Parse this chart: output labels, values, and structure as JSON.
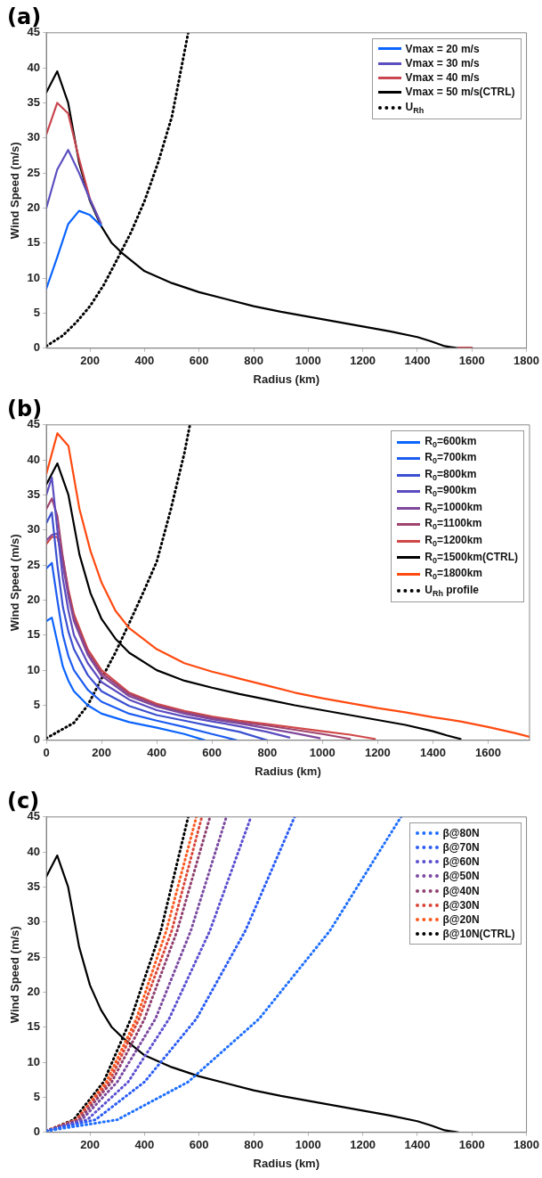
{
  "chart_data": [
    {
      "type": "line",
      "title": "(a)",
      "xlabel": "Radius (km)",
      "ylabel": "Wind Speed (m/s)",
      "xlim": [
        40,
        1800
      ],
      "xticks": [
        200,
        400,
        600,
        800,
        1000,
        1200,
        1400,
        1600,
        1800
      ],
      "ylim": [
        0,
        45
      ],
      "yticks": [
        0,
        5,
        10,
        15,
        20,
        25,
        30,
        35,
        40,
        45
      ],
      "legend": "top right",
      "marker": "none",
      "x": [
        40,
        80,
        120,
        160,
        200,
        240,
        280,
        320,
        400,
        500,
        600,
        700,
        800,
        900,
        1000,
        1100,
        1200,
        1300,
        1400,
        1450,
        1500,
        1550,
        1600
      ],
      "series": [
        {
          "name": "Vmax = 20 m/s",
          "color": "#0a64ff",
          "values": [
            8.5,
            13,
            17.7,
            19.6,
            19,
            17.5,
            null,
            null,
            null,
            null,
            null,
            null,
            null,
            null,
            null,
            null,
            null,
            null,
            null,
            null,
            null,
            null,
            null
          ]
        },
        {
          "name": "Vmax = 30 m/s",
          "color": "#5b4fc0",
          "values": [
            20,
            25.5,
            28.3,
            25,
            21.2,
            17.8,
            null,
            null,
            null,
            null,
            null,
            null,
            null,
            null,
            null,
            null,
            null,
            null,
            null,
            null,
            null,
            null,
            null
          ]
        },
        {
          "name": "Vmax = 40 m/s",
          "color": "#c8464f",
          "values": [
            30.5,
            35,
            33.5,
            27,
            21.3,
            17.8,
            null,
            null,
            null,
            null,
            null,
            null,
            null,
            null,
            null,
            null,
            null,
            null,
            null,
            null,
            null,
            0.1,
            0.1
          ]
        },
        {
          "name": "Vmax = 50 m/s(CTRL)",
          "color": "#000000",
          "x": [
            40,
            80,
            120,
            160,
            200,
            240,
            280,
            320,
            400,
            500,
            600,
            700,
            800,
            900,
            1000,
            1100,
            1200,
            1300,
            1400,
            1450,
            1500,
            1550
          ],
          "values": [
            36.5,
            39.5,
            35,
            26.5,
            21,
            17.5,
            15,
            13.5,
            11,
            9.3,
            8,
            7,
            6,
            5.2,
            4.5,
            3.8,
            3.1,
            2.4,
            1.6,
            1,
            0.3,
            0
          ]
        },
        {
          "name": "U$_{Rh}$",
          "color": "#000000",
          "line_style": "dotted",
          "x": [
            40,
            100,
            150,
            200,
            250,
            300,
            350,
            400,
            450,
            500,
            560
          ],
          "values": [
            0.3,
            1.8,
            3.7,
            6,
            9,
            12.7,
            16.5,
            21,
            26.5,
            33,
            45
          ]
        }
      ]
    },
    {
      "type": "line",
      "title": "(b)",
      "xlabel": "Radius (km)",
      "ylabel": "Wind Speed (m/s)",
      "xlim": [
        0,
        1750
      ],
      "xticks": [
        0,
        200,
        400,
        600,
        800,
        1000,
        1200,
        1400,
        1600
      ],
      "ylim": [
        0,
        45
      ],
      "yticks": [
        0,
        5,
        10,
        15,
        20,
        25,
        30,
        35,
        40,
        45
      ],
      "legend": "top right",
      "marker": "none",
      "series": [
        {
          "name": "R$_{0}$=600km",
          "color": "#0a64ff",
          "x": [
            0,
            20,
            40,
            60,
            80,
            100,
            150,
            200,
            300,
            400,
            500,
            575
          ],
          "values": [
            17,
            17.5,
            14,
            10.5,
            8.5,
            7,
            5,
            3.8,
            2.6,
            1.8,
            0.9,
            0
          ]
        },
        {
          "name": "R$_{0}$=700km",
          "color": "#1c5cf0",
          "x": [
            0,
            20,
            40,
            60,
            80,
            100,
            150,
            200,
            300,
            400,
            500,
            600,
            690
          ],
          "values": [
            24.5,
            25.3,
            20,
            15,
            12,
            10,
            7.2,
            5.5,
            3.8,
            2.8,
            1.9,
            0.9,
            0
          ]
        },
        {
          "name": "R$_{0}$=800km",
          "color": "#3a50d0",
          "x": [
            0,
            20,
            40,
            60,
            80,
            100,
            150,
            200,
            300,
            400,
            500,
            600,
            700,
            800
          ],
          "values": [
            31,
            32.5,
            25,
            19,
            15.5,
            13,
            9.3,
            7,
            4.9,
            3.6,
            2.8,
            2,
            1.2,
            0
          ]
        },
        {
          "name": "R$_{0}$=900km",
          "color": "#5a4cc0",
          "x": [
            0,
            20,
            40,
            60,
            80,
            100,
            150,
            200,
            300,
            400,
            500,
            600,
            700,
            800,
            880
          ],
          "values": [
            35,
            37.5,
            30,
            23,
            18.5,
            15,
            11,
            8.3,
            5.8,
            4.3,
            3.4,
            2.7,
            2,
            1.2,
            0.4
          ]
        },
        {
          "name": "R$_{0}$=1000km",
          "color": "#80489c",
          "x": [
            0,
            20,
            40,
            60,
            80,
            100,
            150,
            200,
            300,
            400,
            500,
            600,
            700,
            800,
            900,
            990
          ],
          "values": [
            28.5,
            29.3,
            29.5,
            25,
            20.5,
            17,
            12.2,
            9.2,
            6.3,
            4.8,
            3.8,
            3,
            2.4,
            1.7,
            1,
            0.3
          ]
        },
        {
          "name": "R$_{0}$=1100km",
          "color": "#a04470",
          "x": [
            0,
            20,
            40,
            60,
            80,
            100,
            150,
            200,
            300,
            400,
            500,
            600,
            700,
            800,
            900,
            1000,
            1100
          ],
          "values": [
            33,
            34.5,
            32,
            26,
            21,
            17.5,
            12.6,
            9.6,
            6.6,
            5,
            4,
            3.2,
            2.6,
            2.1,
            1.5,
            0.9,
            0.2
          ]
        },
        {
          "name": "R$_{0}$=1200km",
          "color": "#d04848",
          "x": [
            0,
            20,
            40,
            60,
            80,
            100,
            150,
            200,
            300,
            400,
            500,
            600,
            700,
            800,
            900,
            1000,
            1100,
            1190
          ],
          "values": [
            28,
            29,
            29,
            26,
            21.5,
            18,
            13,
            10,
            6.8,
            5.2,
            4.2,
            3.4,
            2.8,
            2.3,
            1.8,
            1.3,
            0.8,
            0.2
          ]
        },
        {
          "name": "R$_{0}$=1500km(CTRL)",
          "color": "#000000",
          "x": [
            0,
            40,
            80,
            120,
            160,
            200,
            250,
            300,
            400,
            500,
            600,
            700,
            800,
            900,
            1000,
            1100,
            1200,
            1300,
            1400,
            1450,
            1500
          ],
          "values": [
            36.5,
            39.5,
            35,
            26.5,
            21,
            17.3,
            14.5,
            12.5,
            10,
            8.5,
            7.5,
            6.6,
            5.8,
            5,
            4.3,
            3.6,
            2.9,
            2.2,
            1.3,
            0.7,
            0.2
          ]
        },
        {
          "name": "R$_{0}$=1800km",
          "color": "#ff4a10",
          "x": [
            0,
            40,
            80,
            120,
            160,
            200,
            250,
            300,
            400,
            500,
            600,
            700,
            800,
            900,
            1000,
            1100,
            1200,
            1300,
            1400,
            1500,
            1600,
            1700,
            1750
          ],
          "values": [
            38,
            43.8,
            42,
            33,
            27,
            22.5,
            18.5,
            16,
            13,
            11,
            9.8,
            8.8,
            7.8,
            6.8,
            6,
            5.3,
            4.6,
            4,
            3.3,
            2.7,
            1.9,
            1,
            0.5
          ]
        },
        {
          "name": "U$_{Rh}$ profile",
          "color": "#000000",
          "line_style": "dotted",
          "x": [
            0,
            100,
            150,
            200,
            250,
            300,
            350,
            400,
            450,
            500,
            520
          ],
          "values": [
            0.3,
            2.5,
            5,
            8.8,
            12.5,
            16.7,
            21,
            25.5,
            32.8,
            41,
            45
          ]
        }
      ]
    },
    {
      "type": "line",
      "title": "(c)",
      "xlabel": "Radius (km)",
      "ylabel": "Wind Speed (m/s)",
      "xlim": [
        40,
        1800
      ],
      "xticks": [
        200,
        400,
        600,
        800,
        1000,
        1200,
        1400,
        1600,
        1800
      ],
      "ylim": [
        0,
        45
      ],
      "yticks": [
        0,
        5,
        10,
        15,
        20,
        25,
        30,
        35,
        40,
        45
      ],
      "legend": "top right",
      "marker": "none",
      "series": [
        {
          "name": "β@80N",
          "color": "#1f6fff",
          "line_style": "dotted",
          "x": [
            40,
            300,
            560,
            820,
            1080,
            1340
          ],
          "values": [
            0.2,
            1.8,
            7.2,
            16.2,
            28.8,
            45
          ]
        },
        {
          "name": "β@70N",
          "color": "#2a5cf5",
          "line_style": "dotted",
          "x": [
            40,
            220,
            400,
            590,
            770,
            950
          ],
          "values": [
            0.2,
            1.8,
            7.2,
            16.2,
            28.8,
            45
          ]
        },
        {
          "name": "β@60N",
          "color": "#5a4fd0",
          "line_style": "dotted",
          "x": [
            40,
            190,
            340,
            490,
            640,
            790
          ],
          "values": [
            0.2,
            1.8,
            7.2,
            16.2,
            28.8,
            45
          ]
        },
        {
          "name": "β@50N",
          "color": "#7a4aa0",
          "line_style": "dotted",
          "x": [
            40,
            170,
            300,
            440,
            570,
            700
          ],
          "values": [
            0.2,
            1.8,
            7.2,
            16.2,
            28.8,
            45
          ]
        },
        {
          "name": "β@40N",
          "color": "#8f3f6f",
          "line_style": "dotted",
          "x": [
            40,
            160,
            280,
            400,
            520,
            640
          ],
          "values": [
            0.2,
            1.8,
            7.2,
            16.2,
            28.8,
            45
          ]
        },
        {
          "name": "β@30N",
          "color": "#d9473a",
          "line_style": "dotted",
          "x": [
            40,
            150,
            270,
            380,
            500,
            610
          ],
          "values": [
            0.2,
            1.8,
            7.2,
            16.2,
            28.8,
            45
          ]
        },
        {
          "name": "β@20N",
          "color": "#ff5a1f",
          "line_style": "dotted",
          "x": [
            40,
            150,
            260,
            370,
            480,
            590
          ],
          "values": [
            0.2,
            1.8,
            7.2,
            16.2,
            28.8,
            45
          ]
        },
        {
          "name": "β@10N(CTRL)",
          "color": "#000000",
          "line_style": "dotted",
          "x": [
            40,
            140,
            250,
            350,
            460,
            560
          ],
          "values": [
            0.2,
            1.8,
            7.2,
            16.2,
            28.8,
            45
          ]
        },
        {
          "color": "#000000",
          "x": [
            40,
            80,
            120,
            160,
            200,
            240,
            280,
            320,
            400,
            500,
            600,
            700,
            800,
            900,
            1000,
            1100,
            1200,
            1300,
            1400,
            1450,
            1500,
            1550
          ],
          "values": [
            36.5,
            39.5,
            35,
            26.5,
            21,
            17.5,
            15,
            13.5,
            11,
            9.3,
            8,
            7,
            6,
            5.2,
            4.5,
            3.8,
            3.1,
            2.4,
            1.6,
            1,
            0.3,
            0
          ]
        }
      ]
    }
  ]
}
